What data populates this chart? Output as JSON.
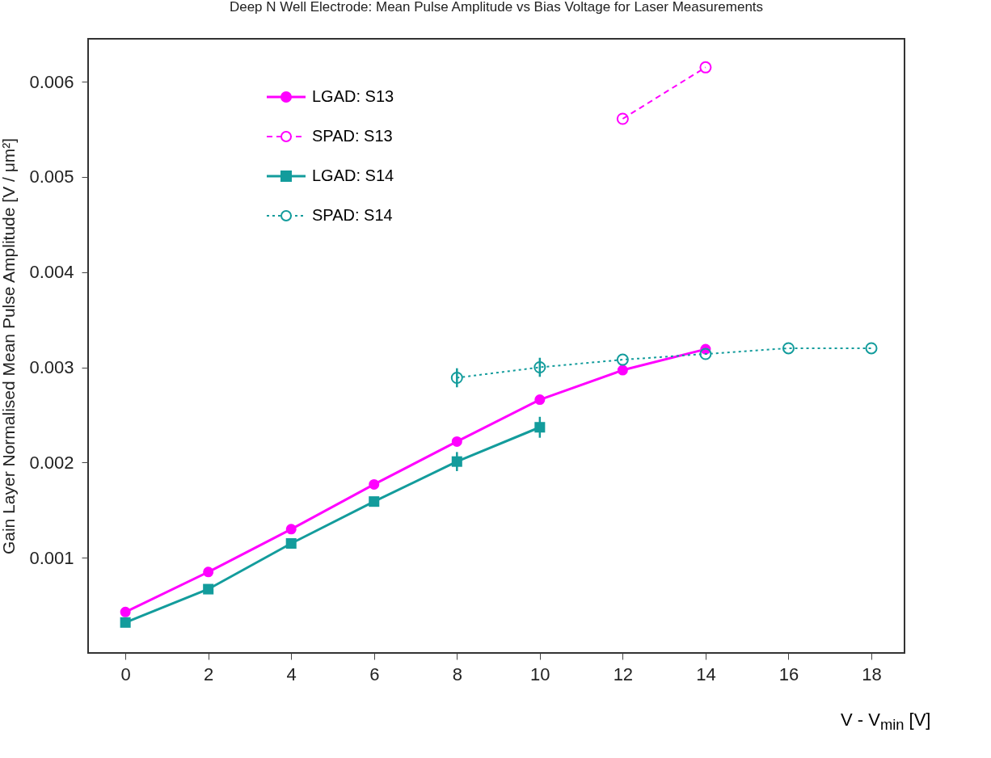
{
  "chart_data": {
    "type": "line",
    "title": "Deep N Well Electrode: Mean Pulse Amplitude vs Bias Voltage for Laser Measurements",
    "xlabel": "V - V$_{min}$ [V]",
    "ylabel": "Gain Layer Normalised Mean Pulse Amplitude [V /     μm²]",
    "xlim": [
      -0.9,
      18.8
    ],
    "xticks": [
      0,
      2,
      4,
      6,
      8,
      10,
      12,
      14,
      16,
      18
    ],
    "ylim": [
      0,
      0.00645
    ],
    "yticks": [
      0.001,
      0.002,
      0.003,
      0.004,
      0.005,
      0.006
    ],
    "grid": false,
    "legend": "top left",
    "series": [
      {
        "name": "LGAD: S13",
        "color": "#ff00ff",
        "marker": "circle",
        "line_style": "solid",
        "x": [
          0,
          2,
          4,
          6,
          8,
          10,
          12,
          14
        ],
        "values": [
          0.00043,
          0.00085,
          0.0013,
          0.00177,
          0.00222,
          0.00266,
          0.00297,
          0.00319
        ]
      },
      {
        "name": "SPAD: S13",
        "color": "#ff00ff",
        "marker": "circle",
        "line_style": "dashed",
        "x": [
          12,
          14
        ],
        "values": [
          0.00561,
          0.00615
        ]
      },
      {
        "name": "LGAD: S14",
        "color": "#139c9c",
        "marker": "square",
        "line_style": "solid",
        "x": [
          0,
          2,
          4,
          6,
          8,
          10
        ],
        "values": [
          0.00032,
          0.00067,
          0.00115,
          0.00159,
          0.00201,
          0.00237
        ],
        "errors": [
          null,
          null,
          null,
          null,
          0.0001,
          0.00011
        ]
      },
      {
        "name": "SPAD: S14",
        "color": "#139c9c",
        "marker": "circle",
        "line_style": "dotted",
        "x": [
          8,
          10,
          12,
          14,
          16,
          18
        ],
        "values": [
          0.00289,
          0.003,
          0.00308,
          0.00314,
          0.0032,
          0.0032
        ],
        "errors": [
          0.0001,
          0.0001,
          null,
          null,
          null,
          null
        ]
      }
    ]
  }
}
